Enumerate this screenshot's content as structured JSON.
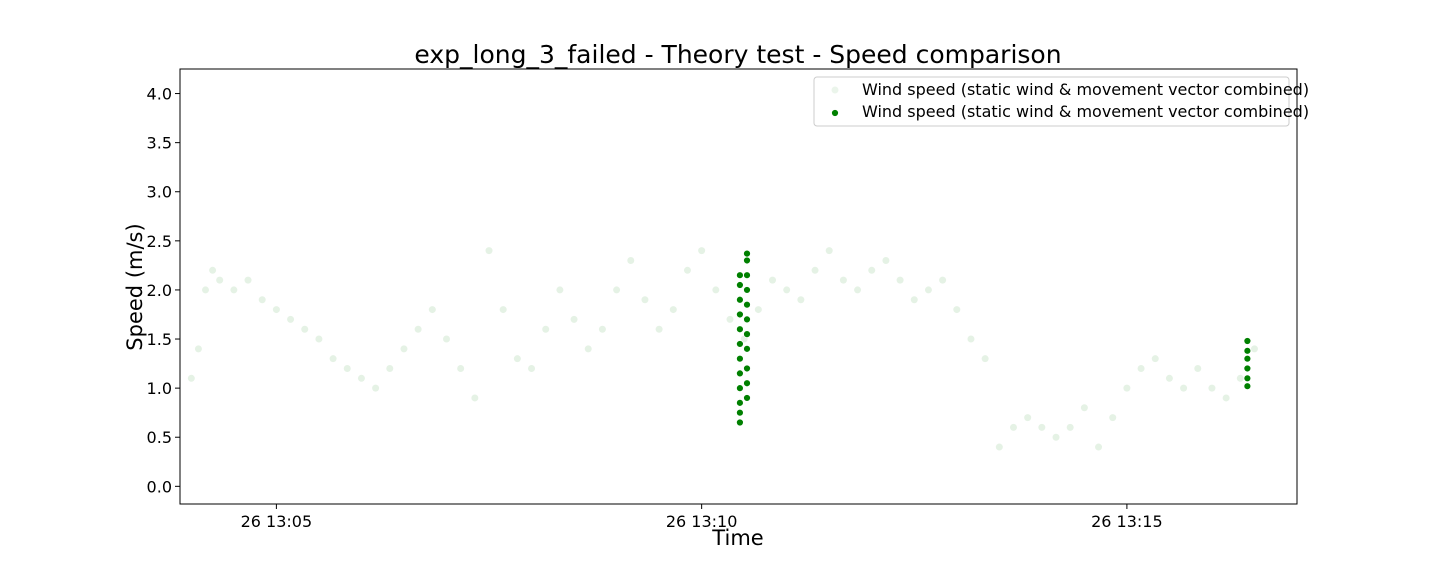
{
  "chart_data": {
    "type": "scatter",
    "title": "exp_long_3_failed - Theory test - Speed comparison",
    "xlabel": "Time",
    "ylabel": "Speed (m/s)",
    "xlim": [
      "26 13:03:52",
      "26 13:17:00"
    ],
    "ylim": [
      -0.18,
      4.25
    ],
    "x_ticks": [
      {
        "label": "26 13:05",
        "value": "26 13:05:00"
      },
      {
        "label": "26 13:10",
        "value": "26 13:10:00"
      },
      {
        "label": "26 13:15",
        "value": "26 13:15:00"
      }
    ],
    "y_ticks": [
      "0.0",
      "0.5",
      "1.0",
      "1.5",
      "2.0",
      "2.5",
      "3.0",
      "3.5",
      "4.0"
    ],
    "grid": false,
    "legend_position": "top-right",
    "colors": {
      "faint": "#008000",
      "highlight": "#008000"
    },
    "series": [
      {
        "name": "Wind speed (static wind & movement vector combined)",
        "style": "faint",
        "points": [
          [
            "26 13:04:00",
            1.1
          ],
          [
            "26 13:04:05",
            1.4
          ],
          [
            "26 13:04:10",
            2.0
          ],
          [
            "26 13:04:15",
            2.2
          ],
          [
            "26 13:04:20",
            2.1
          ],
          [
            "26 13:04:30",
            2.0
          ],
          [
            "26 13:04:40",
            2.1
          ],
          [
            "26 13:04:50",
            1.9
          ],
          [
            "26 13:05:00",
            1.8
          ],
          [
            "26 13:05:10",
            1.7
          ],
          [
            "26 13:05:20",
            1.6
          ],
          [
            "26 13:05:30",
            1.5
          ],
          [
            "26 13:05:40",
            1.3
          ],
          [
            "26 13:05:50",
            1.2
          ],
          [
            "26 13:06:00",
            1.1
          ],
          [
            "26 13:06:10",
            1.0
          ],
          [
            "26 13:06:20",
            1.2
          ],
          [
            "26 13:06:30",
            1.4
          ],
          [
            "26 13:06:40",
            1.6
          ],
          [
            "26 13:06:50",
            1.8
          ],
          [
            "26 13:07:00",
            1.5
          ],
          [
            "26 13:07:10",
            1.2
          ],
          [
            "26 13:07:20",
            0.9
          ],
          [
            "26 13:07:30",
            2.4
          ],
          [
            "26 13:07:40",
            1.8
          ],
          [
            "26 13:07:50",
            1.3
          ],
          [
            "26 13:08:00",
            1.2
          ],
          [
            "26 13:08:10",
            1.6
          ],
          [
            "26 13:08:20",
            2.0
          ],
          [
            "26 13:08:30",
            1.7
          ],
          [
            "26 13:08:40",
            1.4
          ],
          [
            "26 13:08:50",
            1.6
          ],
          [
            "26 13:09:00",
            2.0
          ],
          [
            "26 13:09:10",
            2.3
          ],
          [
            "26 13:09:20",
            1.9
          ],
          [
            "26 13:09:30",
            1.6
          ],
          [
            "26 13:09:40",
            1.8
          ],
          [
            "26 13:09:50",
            2.2
          ],
          [
            "26 13:10:00",
            2.4
          ],
          [
            "26 13:10:10",
            2.0
          ],
          [
            "26 13:10:20",
            1.7
          ],
          [
            "26 13:10:30",
            1.5
          ],
          [
            "26 13:10:40",
            1.8
          ],
          [
            "26 13:10:50",
            2.1
          ],
          [
            "26 13:11:00",
            2.0
          ],
          [
            "26 13:11:10",
            1.9
          ],
          [
            "26 13:11:20",
            2.2
          ],
          [
            "26 13:11:30",
            2.4
          ],
          [
            "26 13:11:40",
            2.1
          ],
          [
            "26 13:11:50",
            2.0
          ],
          [
            "26 13:12:00",
            2.2
          ],
          [
            "26 13:12:10",
            2.3
          ],
          [
            "26 13:12:20",
            2.1
          ],
          [
            "26 13:12:30",
            1.9
          ],
          [
            "26 13:12:40",
            2.0
          ],
          [
            "26 13:12:50",
            2.1
          ],
          [
            "26 13:13:00",
            1.8
          ],
          [
            "26 13:13:10",
            1.5
          ],
          [
            "26 13:13:20",
            1.3
          ],
          [
            "26 13:13:30",
            0.4
          ],
          [
            "26 13:13:40",
            0.6
          ],
          [
            "26 13:13:50",
            0.7
          ],
          [
            "26 13:14:00",
            0.6
          ],
          [
            "26 13:14:10",
            0.5
          ],
          [
            "26 13:14:20",
            0.6
          ],
          [
            "26 13:14:30",
            0.8
          ],
          [
            "26 13:14:40",
            0.4
          ],
          [
            "26 13:14:50",
            0.7
          ],
          [
            "26 13:15:00",
            1.0
          ],
          [
            "26 13:15:10",
            1.2
          ],
          [
            "26 13:15:20",
            1.3
          ],
          [
            "26 13:15:30",
            1.1
          ],
          [
            "26 13:15:40",
            1.0
          ],
          [
            "26 13:15:50",
            1.2
          ],
          [
            "26 13:16:00",
            1.0
          ],
          [
            "26 13:16:10",
            0.9
          ],
          [
            "26 13:16:20",
            1.1
          ],
          [
            "26 13:16:30",
            1.4
          ]
        ]
      },
      {
        "name": "Wind speed (static wind & movement vector combined)",
        "style": "highlight",
        "points": [
          [
            "26 13:10:27",
            0.65
          ],
          [
            "26 13:10:27",
            0.75
          ],
          [
            "26 13:10:27",
            0.85
          ],
          [
            "26 13:10:27",
            1.0
          ],
          [
            "26 13:10:27",
            1.15
          ],
          [
            "26 13:10:27",
            1.3
          ],
          [
            "26 13:10:27",
            1.45
          ],
          [
            "26 13:10:27",
            1.6
          ],
          [
            "26 13:10:27",
            1.75
          ],
          [
            "26 13:10:27",
            1.9
          ],
          [
            "26 13:10:27",
            2.05
          ],
          [
            "26 13:10:27",
            2.15
          ],
          [
            "26 13:10:32",
            0.9
          ],
          [
            "26 13:10:32",
            1.05
          ],
          [
            "26 13:10:32",
            1.2
          ],
          [
            "26 13:10:32",
            1.4
          ],
          [
            "26 13:10:32",
            1.55
          ],
          [
            "26 13:10:32",
            1.7
          ],
          [
            "26 13:10:32",
            1.85
          ],
          [
            "26 13:10:32",
            2.0
          ],
          [
            "26 13:10:32",
            2.15
          ],
          [
            "26 13:10:32",
            2.3
          ],
          [
            "26 13:10:32",
            2.37
          ],
          [
            "26 13:16:25",
            1.02
          ],
          [
            "26 13:16:25",
            1.1
          ],
          [
            "26 13:16:25",
            1.2
          ],
          [
            "26 13:16:25",
            1.3
          ],
          [
            "26 13:16:25",
            1.38
          ],
          [
            "26 13:16:25",
            1.48
          ]
        ]
      }
    ]
  }
}
